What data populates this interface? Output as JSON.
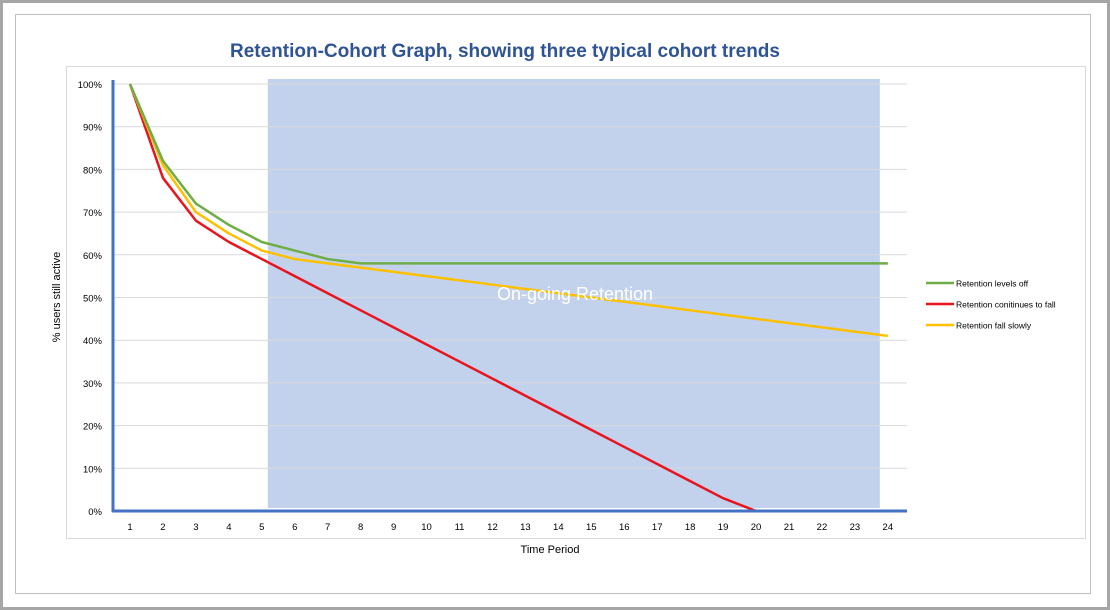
{
  "chart_data": {
    "type": "line",
    "title": "Retention-Cohort Graph, showing three typical cohort trends",
    "xlabel": "Time Period",
    "ylabel": "% users still active",
    "x": [
      1,
      2,
      3,
      4,
      5,
      6,
      7,
      8,
      9,
      10,
      11,
      12,
      13,
      14,
      15,
      16,
      17,
      18,
      19,
      20,
      21,
      22,
      23,
      24
    ],
    "ylim": [
      0,
      100
    ],
    "yticks": [
      "0%",
      "10%",
      "20%",
      "30%",
      "40%",
      "50%",
      "60%",
      "70%",
      "80%",
      "90%",
      "100%"
    ],
    "grid": true,
    "legend_position": "right",
    "shaded_region": {
      "label": "On-going Retention",
      "x_start": 5,
      "x_end": 24,
      "color": "#b4c7e7"
    },
    "series": [
      {
        "name": "Retention levels off",
        "color": "#70ad47",
        "values": [
          100,
          82,
          72,
          67,
          63,
          61,
          59,
          58,
          58,
          58,
          58,
          58,
          58,
          58,
          58,
          58,
          58,
          58,
          58,
          58,
          58,
          58,
          58,
          58
        ]
      },
      {
        "name": "Retention conitinues to fall",
        "color": "#e8141e",
        "values": [
          100,
          78,
          68,
          63,
          59,
          55,
          51,
          47,
          43,
          39,
          35,
          31,
          27,
          23,
          19,
          15,
          11,
          7,
          3,
          0,
          0,
          0,
          0,
          0
        ]
      },
      {
        "name": "Retention fall slowly",
        "color": "#ffc000",
        "values": [
          100,
          81,
          70,
          65,
          61,
          59,
          58,
          57,
          56,
          55,
          54,
          53,
          52,
          51,
          50,
          49,
          48,
          47,
          46,
          45,
          44,
          43,
          42,
          41
        ]
      }
    ]
  }
}
